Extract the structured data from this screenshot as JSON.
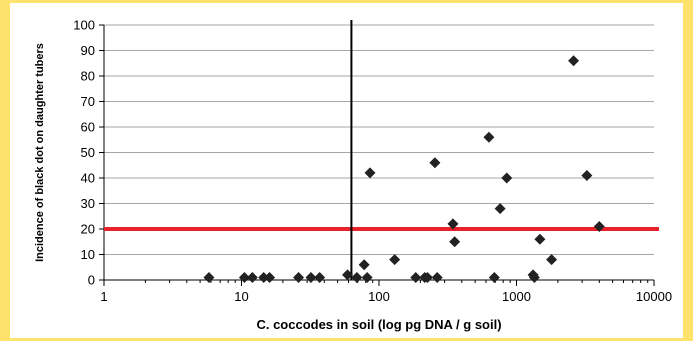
{
  "chart_data": {
    "type": "scatter",
    "title": "",
    "xlabel": "C. coccodes in soil (log pg DNA / g soil)",
    "ylabel": "Incidence of black dot on daughter tubers",
    "x_scale": "log",
    "xlim": [
      1,
      10000
    ],
    "ylim": [
      0,
      100
    ],
    "x_ticks": [
      1,
      10,
      100,
      1000,
      10000
    ],
    "x_tick_labels": [
      "1",
      "10",
      "100",
      "1000",
      "10000"
    ],
    "y_ticks": [
      0,
      10,
      20,
      30,
      40,
      50,
      60,
      70,
      80,
      90,
      100
    ],
    "y_tick_labels": [
      "0",
      "10",
      "20",
      "30",
      "40",
      "50",
      "60",
      "70",
      "80",
      "90",
      "100"
    ],
    "grid": "horizontal",
    "legend": "none",
    "marker": "diamond",
    "colors": {
      "points": "#222222",
      "threshold_line": "#e8222a",
      "vertical_line": "#000000",
      "gridlines": "#a6a6a6",
      "frame": "#fde26b"
    },
    "reference_lines": {
      "horizontal_y": 20,
      "vertical_x": 63
    },
    "points": [
      {
        "x": 5.8,
        "y": 1
      },
      {
        "x": 10.5,
        "y": 1
      },
      {
        "x": 12,
        "y": 1
      },
      {
        "x": 14.5,
        "y": 1
      },
      {
        "x": 16,
        "y": 1
      },
      {
        "x": 26,
        "y": 1
      },
      {
        "x": 32,
        "y": 1
      },
      {
        "x": 37,
        "y": 1
      },
      {
        "x": 59,
        "y": 2
      },
      {
        "x": 69,
        "y": 1
      },
      {
        "x": 78,
        "y": 6
      },
      {
        "x": 82,
        "y": 1
      },
      {
        "x": 86,
        "y": 42
      },
      {
        "x": 130,
        "y": 8
      },
      {
        "x": 185,
        "y": 1
      },
      {
        "x": 215,
        "y": 1
      },
      {
        "x": 225,
        "y": 1
      },
      {
        "x": 255,
        "y": 46
      },
      {
        "x": 265,
        "y": 1
      },
      {
        "x": 345,
        "y": 22
      },
      {
        "x": 355,
        "y": 15
      },
      {
        "x": 630,
        "y": 56
      },
      {
        "x": 690,
        "y": 1
      },
      {
        "x": 760,
        "y": 28
      },
      {
        "x": 850,
        "y": 40
      },
      {
        "x": 1320,
        "y": 2
      },
      {
        "x": 1350,
        "y": 1
      },
      {
        "x": 1480,
        "y": 16
      },
      {
        "x": 1800,
        "y": 8
      },
      {
        "x": 2600,
        "y": 86
      },
      {
        "x": 3250,
        "y": 41
      },
      {
        "x": 4000,
        "y": 21
      }
    ]
  }
}
